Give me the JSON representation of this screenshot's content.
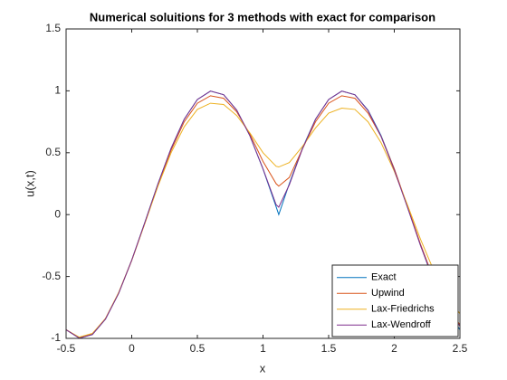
{
  "chart_data": {
    "type": "line",
    "title": "Numerical soluitions for 3 methods with exact for comparison",
    "xlabel": "x",
    "ylabel": "u(x,t)",
    "x": [
      -0.5,
      -0.4,
      -0.3,
      -0.2,
      -0.1,
      0,
      0.1,
      0.2,
      0.3,
      0.4,
      0.5,
      0.6,
      0.7,
      0.8,
      0.9,
      1.0,
      1.1,
      1.12,
      1.2,
      1.3,
      1.4,
      1.5,
      1.6,
      1.7,
      1.8,
      1.9,
      2.0,
      2.1,
      2.2,
      2.3,
      2.4,
      2.5
    ],
    "series": [
      {
        "name": "Exact",
        "color": "#0072BD",
        "values": [
          -0.93,
          -0.998,
          -0.969,
          -0.844,
          -0.637,
          -0.368,
          -0.063,
          0.249,
          0.536,
          0.771,
          0.93,
          0.998,
          0.969,
          0.844,
          0.637,
          0.368,
          0.063,
          0,
          0.249,
          0.536,
          0.771,
          0.93,
          0.998,
          0.969,
          0.844,
          0.637,
          0.368,
          0.063,
          -0.249,
          -0.536,
          -0.771,
          -0.93
        ]
      },
      {
        "name": "Upwind",
        "color": "#D95319",
        "values": [
          -0.93,
          -0.995,
          -0.965,
          -0.84,
          -0.635,
          -0.37,
          -0.07,
          0.24,
          0.52,
          0.75,
          0.9,
          0.96,
          0.94,
          0.83,
          0.65,
          0.43,
          0.25,
          0.23,
          0.3,
          0.53,
          0.75,
          0.9,
          0.96,
          0.94,
          0.82,
          0.63,
          0.37,
          0.07,
          -0.24,
          -0.52,
          -0.74,
          -0.89
        ]
      },
      {
        "name": "Lax-Friedrichs",
        "color": "#EDB120",
        "values": [
          -0.93,
          -0.99,
          -0.96,
          -0.84,
          -0.63,
          -0.37,
          -0.07,
          0.23,
          0.5,
          0.71,
          0.85,
          0.9,
          0.89,
          0.8,
          0.66,
          0.5,
          0.39,
          0.385,
          0.42,
          0.55,
          0.7,
          0.82,
          0.86,
          0.85,
          0.75,
          0.58,
          0.35,
          0.08,
          -0.2,
          -0.45,
          -0.66,
          -0.8
        ]
      },
      {
        "name": "Lax-Wendroff",
        "color": "#7E2F8E",
        "values": [
          -0.93,
          -0.998,
          -0.969,
          -0.844,
          -0.637,
          -0.368,
          -0.063,
          0.249,
          0.536,
          0.771,
          0.93,
          0.998,
          0.969,
          0.844,
          0.637,
          0.37,
          0.08,
          0.06,
          0.24,
          0.53,
          0.77,
          0.93,
          0.998,
          0.968,
          0.84,
          0.63,
          0.36,
          0.06,
          -0.25,
          -0.53,
          -0.76,
          -0.9
        ]
      }
    ],
    "xlim": [
      -0.5,
      2.5
    ],
    "xticks": [
      -0.5,
      0,
      0.5,
      1,
      1.5,
      2,
      2.5
    ],
    "ylim": [
      -1,
      1.5
    ],
    "yticks": [
      -1,
      -0.5,
      0,
      0.5,
      1,
      1.5
    ],
    "grid": false,
    "legend": "southeast"
  }
}
